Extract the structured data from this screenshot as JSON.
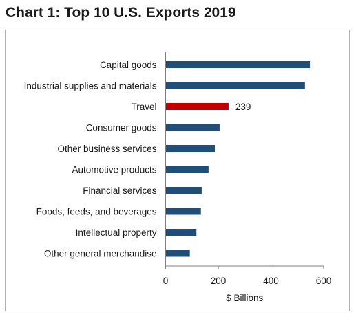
{
  "chart_data": {
    "type": "bar",
    "orientation": "horizontal",
    "title": "Chart 1: Top 10 U.S. Exports 2019",
    "xlabel": "$ Billions",
    "ylabel": "",
    "xlim": [
      0,
      600
    ],
    "x_ticks": [
      "0",
      "200",
      "400",
      "600"
    ],
    "categories": [
      "Capital goods",
      "Industrial supplies and materials",
      "Travel",
      "Consumer goods",
      "Other business services",
      "Automotive products",
      "Financial services",
      "Foods, feeds, and beverages",
      "Intellectual property",
      "Other general merchandise"
    ],
    "values": [
      548,
      529,
      239,
      205,
      187,
      163,
      137,
      134,
      117,
      92
    ],
    "data_labels": [
      {
        "category": "Travel",
        "text": "239"
      }
    ],
    "highlight": "Travel",
    "colors": {
      "bar": "#1f4e79",
      "highlight": "#c00000",
      "axis": "#7f7f7f",
      "border": "#b3b3b3"
    },
    "grid": false,
    "legend": "none"
  }
}
